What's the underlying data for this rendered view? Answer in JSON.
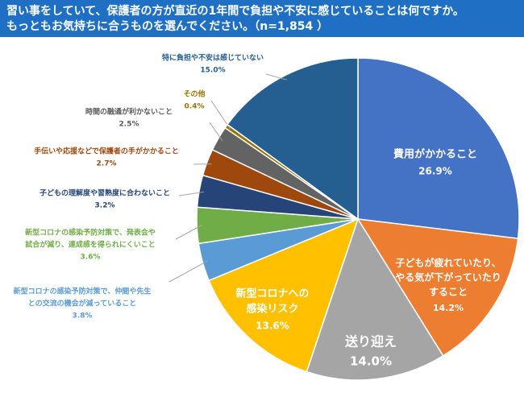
{
  "chart_data": {
    "type": "pie",
    "title": [
      "習い事をしていて、保護者の方が直近の1年間で負担や不安に感じていることは何ですか。",
      "もっともお気持ちに合うものを選んでください。（n=1,854 ）"
    ],
    "categories": [
      [
        "費用がかかること"
      ],
      [
        "子どもが疲れていたり、",
        "やる気が下がっていたり",
        "すること"
      ],
      [
        "送り迎え"
      ],
      [
        "新型コロナへの",
        "感染リスク"
      ],
      [
        "新型コロナの感染予防対策で、仲間や先生",
        "との交流の機会が減っていること"
      ],
      [
        "新型コロナの感染予防対策で、発表会や",
        "試合が減り、達成感を得られにくいこと"
      ],
      [
        "子どもの理解度や習熟度に合わないこと"
      ],
      [
        "手伝いや応援などで保護者の手がかかること"
      ],
      [
        "時間の融通が利かないこと"
      ],
      [
        "その他"
      ],
      [
        "特に負担や不安は感じていない"
      ]
    ],
    "values": [
      26.9,
      14.2,
      14.0,
      13.6,
      3.8,
      3.6,
      3.2,
      2.7,
      2.5,
      0.4,
      15.0
    ],
    "value_labels": [
      "26.9%",
      "14.2%",
      "14.0%",
      "13.6%",
      "3.8%",
      "3.6%",
      "3.2%",
      "2.7%",
      "2.5%",
      "0.4%",
      "15.0%"
    ],
    "colors": [
      "#4472c4",
      "#ed7d31",
      "#a5a5a5",
      "#ffc000",
      "#5b9bd5",
      "#70ad47",
      "#264478",
      "#9e480e",
      "#636363",
      "#997300",
      "#255e91"
    ]
  }
}
